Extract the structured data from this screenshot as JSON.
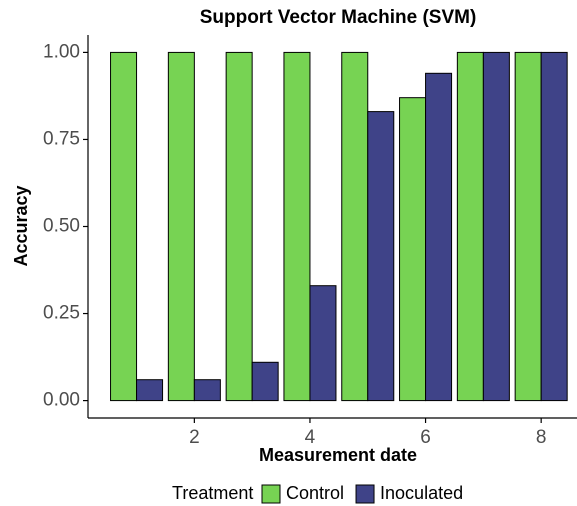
{
  "chart_data": {
    "type": "bar",
    "title": "Support Vector Machine (SVM)",
    "x_label": "Measurement date",
    "y_label": "Accuracy",
    "x": [
      1,
      2,
      3,
      4,
      5,
      6,
      7,
      8
    ],
    "series": [
      {
        "name": "Control",
        "color": "#77d353",
        "values": [
          1,
          1,
          1,
          1,
          1,
          0.87,
          1,
          1
        ]
      },
      {
        "name": "Inoculated",
        "color": "#3f4388",
        "values": [
          0.06,
          0.06,
          0.11,
          0.33,
          0.83,
          0.94,
          1,
          1
        ]
      }
    ],
    "xlim": [
      0.16,
      8.62
    ],
    "xticks": [
      2,
      4,
      6,
      8
    ],
    "ylim": [
      -0.05,
      1.05
    ],
    "yticks": [
      {
        "value": 0,
        "label": "0.00"
      },
      {
        "value": 0.25,
        "label": "0.25"
      },
      {
        "value": 0.5,
        "label": "0.50"
      },
      {
        "value": 0.75,
        "label": "0.75"
      },
      {
        "value": 1,
        "label": "1.00"
      }
    ],
    "grid": false,
    "legend_title": "Treatment",
    "legend_position": "bottom"
  }
}
